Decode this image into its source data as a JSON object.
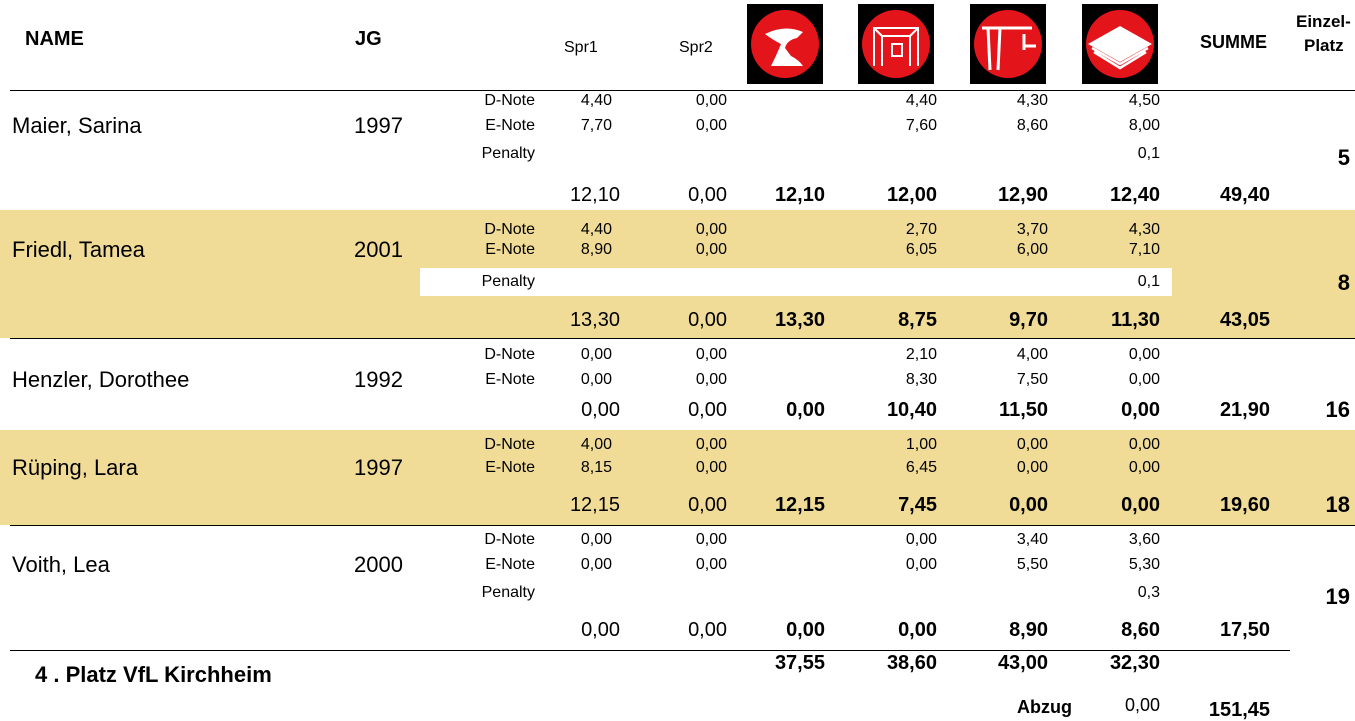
{
  "header": {
    "name": "NAME",
    "jg": "JG",
    "spr1": "Spr1",
    "spr2": "Spr2",
    "summe": "SUMME",
    "platz": [
      "Einzel-",
      "Platz"
    ]
  },
  "athletes": [
    {
      "name": "Maier, Sarina",
      "year": "1997",
      "rows": [
        {
          "label": "D-Note",
          "spr1": "4,40",
          "spr2": "0,00",
          "bars": "4,40",
          "beam": "4,30",
          "floor": "4,50"
        },
        {
          "label": "E-Note",
          "spr1": "7,70",
          "spr2": "0,00",
          "bars": "7,60",
          "beam": "8,60",
          "floor": "8,00"
        },
        {
          "label": "Penalty",
          "floor": "0,1"
        }
      ],
      "totals": {
        "spr1": "12,10",
        "spr2": "0,00",
        "vault": "12,10",
        "bars": "12,00",
        "beam": "12,90",
        "floor": "12,40"
      },
      "summe": "49,40",
      "platz": "5"
    },
    {
      "name": "Friedl, Tamea",
      "year": "2001",
      "rows": [
        {
          "label": "D-Note",
          "spr1": "4,40",
          "spr2": "0,00",
          "bars": "2,70",
          "beam": "3,70",
          "floor": "4,30"
        },
        {
          "label": "E-Note",
          "spr1": "8,90",
          "spr2": "0,00",
          "bars": "6,05",
          "beam": "6,00",
          "floor": "7,10"
        },
        {
          "label": "Penalty",
          "floor": "0,1"
        }
      ],
      "totals": {
        "spr1": "13,30",
        "spr2": "0,00",
        "vault": "13,30",
        "bars": "8,75",
        "beam": "9,70",
        "floor": "11,30"
      },
      "summe": "43,05",
      "platz": "8"
    },
    {
      "name": "Henzler, Dorothee",
      "year": "1992",
      "rows": [
        {
          "label": "D-Note",
          "spr1": "0,00",
          "spr2": "0,00",
          "bars": "2,10",
          "beam": "4,00",
          "floor": "0,00"
        },
        {
          "label": "E-Note",
          "spr1": "0,00",
          "spr2": "0,00",
          "bars": "8,30",
          "beam": "7,50",
          "floor": "0,00"
        }
      ],
      "totals": {
        "spr1": "0,00",
        "spr2": "0,00",
        "vault": "0,00",
        "bars": "10,40",
        "beam": "11,50",
        "floor": "0,00"
      },
      "summe": "21,90",
      "platz": "16"
    },
    {
      "name": "Rüping, Lara",
      "year": "1997",
      "rows": [
        {
          "label": "D-Note",
          "spr1": "4,00",
          "spr2": "0,00",
          "bars": "1,00",
          "beam": "0,00",
          "floor": "0,00"
        },
        {
          "label": "E-Note",
          "spr1": "8,15",
          "spr2": "0,00",
          "bars": "6,45",
          "beam": "0,00",
          "floor": "0,00"
        }
      ],
      "totals": {
        "spr1": "12,15",
        "spr2": "0,00",
        "vault": "12,15",
        "bars": "7,45",
        "beam": "0,00",
        "floor": "0,00"
      },
      "summe": "19,60",
      "platz": "18"
    },
    {
      "name": "Voith, Lea",
      "year": "2000",
      "rows": [
        {
          "label": "D-Note",
          "spr1": "0,00",
          "spr2": "0,00",
          "bars": "0,00",
          "beam": "3,40",
          "floor": "3,60"
        },
        {
          "label": "E-Note",
          "spr1": "0,00",
          "spr2": "0,00",
          "bars": "0,00",
          "beam": "5,50",
          "floor": "5,30"
        },
        {
          "label": "Penalty",
          "floor": "0,3"
        }
      ],
      "totals": {
        "spr1": "0,00",
        "spr2": "0,00",
        "vault": "0,00",
        "bars": "0,00",
        "beam": "8,90",
        "floor": "8,60"
      },
      "summe": "17,50",
      "platz": "19"
    }
  ],
  "footer": {
    "team": "4 . Platz  VfL Kirchheim",
    "totals": {
      "vault": "37,55",
      "bars": "38,60",
      "beam": "43,00",
      "floor": "32,30"
    },
    "abzug_label": "Abzug",
    "abzug": "0,00",
    "total": "151,45"
  }
}
